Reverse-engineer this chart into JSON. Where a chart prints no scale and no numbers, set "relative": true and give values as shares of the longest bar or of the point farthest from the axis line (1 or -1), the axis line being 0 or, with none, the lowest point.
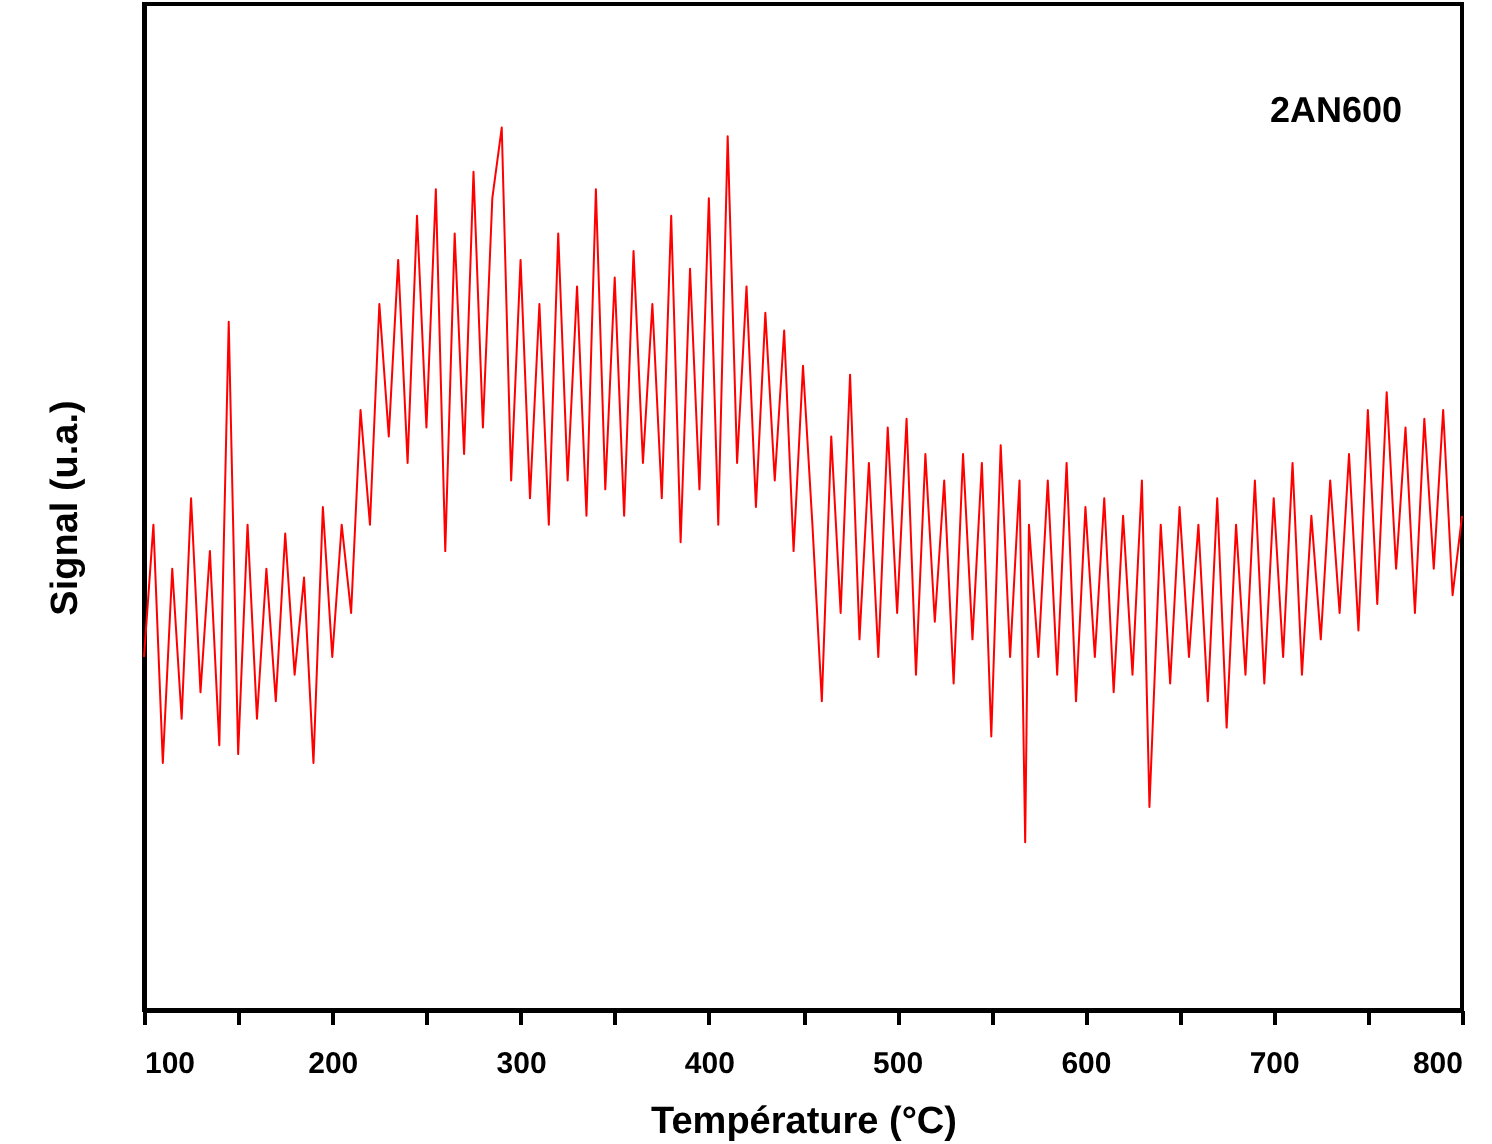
{
  "chart_data": {
    "type": "line",
    "xlabel": "Température (°C)",
    "ylabel": "Signal (u.a.)",
    "relative": true,
    "tick_labels": "x",
    "annotations": [
      "2AN600"
    ],
    "xlim": [
      100,
      800
    ],
    "xticks": [
      100,
      {
        "value": 150,
        "label": null
      },
      200,
      {
        "value": 250,
        "label": null
      },
      300,
      {
        "value": 350,
        "label": null
      },
      400,
      {
        "value": 450,
        "label": null
      },
      500,
      {
        "value": 550,
        "label": null
      },
      600,
      {
        "value": 650,
        "label": null
      },
      700,
      {
        "value": 750,
        "label": null
      },
      800
    ],
    "x": [
      100,
      105,
      110,
      115,
      120,
      125,
      130,
      135,
      140,
      145,
      150,
      155,
      160,
      165,
      170,
      175,
      180,
      185,
      190,
      195,
      200,
      205,
      210,
      215,
      220,
      225,
      230,
      235,
      240,
      245,
      250,
      255,
      260,
      265,
      270,
      275,
      280,
      285,
      290,
      295,
      300,
      305,
      310,
      315,
      320,
      325,
      330,
      335,
      340,
      345,
      350,
      355,
      360,
      365,
      370,
      375,
      380,
      385,
      390,
      395,
      400,
      405,
      410,
      415,
      420,
      425,
      430,
      435,
      440,
      445,
      450,
      455,
      460,
      465,
      470,
      475,
      480,
      485,
      490,
      495,
      500,
      505,
      510,
      515,
      520,
      525,
      530,
      535,
      540,
      545,
      550,
      555,
      560,
      565,
      568,
      570,
      575,
      580,
      585,
      590,
      595,
      600,
      605,
      610,
      615,
      620,
      625,
      630,
      634,
      640,
      645,
      650,
      655,
      660,
      665,
      670,
      675,
      680,
      685,
      690,
      695,
      700,
      705,
      710,
      715,
      720,
      725,
      730,
      735,
      740,
      745,
      750,
      755,
      760,
      765,
      770,
      775,
      780,
      785,
      790,
      795,
      800
    ],
    "series": [
      {
        "color": "#ff0000",
        "values": [
          0.4,
          0.55,
          0.28,
          0.5,
          0.33,
          0.58,
          0.36,
          0.52,
          0.3,
          0.78,
          0.29,
          0.55,
          0.33,
          0.5,
          0.35,
          0.54,
          0.38,
          0.49,
          0.28,
          0.57,
          0.4,
          0.55,
          0.45,
          0.68,
          0.55,
          0.8,
          0.65,
          0.85,
          0.62,
          0.9,
          0.66,
          0.93,
          0.52,
          0.88,
          0.63,
          0.95,
          0.66,
          0.92,
          1.0,
          0.6,
          0.85,
          0.58,
          0.8,
          0.55,
          0.88,
          0.6,
          0.82,
          0.56,
          0.93,
          0.59,
          0.83,
          0.56,
          0.86,
          0.62,
          0.8,
          0.58,
          0.9,
          0.53,
          0.84,
          0.59,
          0.92,
          0.55,
          0.99,
          0.62,
          0.82,
          0.57,
          0.79,
          0.6,
          0.77,
          0.52,
          0.73,
          0.55,
          0.35,
          0.65,
          0.45,
          0.72,
          0.42,
          0.62,
          0.4,
          0.66,
          0.45,
          0.67,
          0.38,
          0.63,
          0.44,
          0.6,
          0.37,
          0.63,
          0.42,
          0.62,
          0.31,
          0.64,
          0.4,
          0.6,
          0.19,
          0.55,
          0.4,
          0.6,
          0.38,
          0.62,
          0.35,
          0.57,
          0.4,
          0.58,
          0.36,
          0.56,
          0.38,
          0.6,
          0.23,
          0.55,
          0.37,
          0.57,
          0.4,
          0.55,
          0.35,
          0.58,
          0.32,
          0.55,
          0.38,
          0.6,
          0.37,
          0.58,
          0.4,
          0.62,
          0.38,
          0.56,
          0.42,
          0.6,
          0.45,
          0.63,
          0.43,
          0.68,
          0.46,
          0.7,
          0.5,
          0.66,
          0.45,
          0.67,
          0.5,
          0.68,
          0.47,
          0.56
        ]
      }
    ]
  }
}
